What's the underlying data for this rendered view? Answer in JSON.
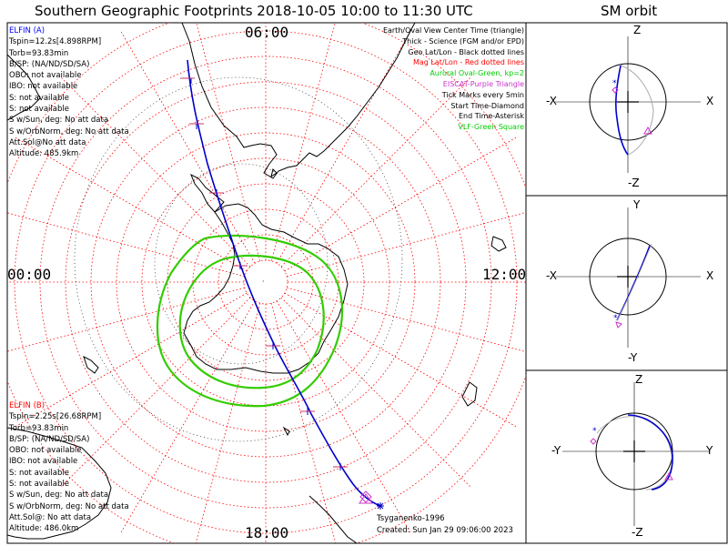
{
  "header": {
    "title": "Southern Geographic Footprints 2018-10-05 10:00 to 11:30 UTC",
    "orbit_title": "SM orbit"
  },
  "map": {
    "mlt_top": "06:00",
    "mlt_left": "00:00",
    "mlt_right": "12:00",
    "mlt_bottom": "18:00"
  },
  "elfin_a": {
    "name": "ELFIN (A)",
    "color": "#0000ff",
    "lines": [
      "Tspin=12.2s[4.898RPM]",
      "Torb=93.83min",
      "B/SP: (NA/ND/SD/SA)",
      "OBO: not available",
      "IBO: not available",
      "S: not available",
      "S: not available",
      "S w/Sun, deg: No att data",
      "S w/OrbNorm, deg: No att data",
      "Att.Sol@No att data",
      "Altitude: 485.9km"
    ]
  },
  "elfin_b": {
    "name": "ELFIN (B)",
    "color": "#ff0000",
    "lines": [
      "Tspin=2.25s[26.68RPM]",
      "Torb=93.83min",
      "B/SP: (NA/ND/SD/SA)",
      "OBO: not available",
      "IBO: not available",
      "S: not available",
      "S: not available",
      "S w/Sun, deg: No att data",
      "S w/OrbNorm, deg: No att data",
      "Att.Sol@: No att data",
      "Altitude: 486.0km"
    ]
  },
  "legend": [
    {
      "text": "Earth/Oval View Center Time (triangle)",
      "color": "#000000"
    },
    {
      "text": "Thick - Science (FGM and/or EPD)",
      "color": "#000000"
    },
    {
      "text": "Geo Lat/Lon - Black dotted lines",
      "color": "#000000"
    },
    {
      "text": "Mag Lat/Lon - Red dotted lines",
      "color": "#ff0000"
    },
    {
      "text": "Auroral Oval-Green, kp=2",
      "color": "#00cc00"
    },
    {
      "text": "EISCAT-Purple Triangle",
      "color": "#cc33cc"
    },
    {
      "text": "Tick Marks every 5min",
      "color": "#000000"
    },
    {
      "text": "Start Time-Diamond",
      "color": "#000000"
    },
    {
      "text": "End Time-Asterisk",
      "color": "#000000"
    },
    {
      "text": "VLF-Green Square",
      "color": "#00cc00"
    }
  ],
  "footer": {
    "model": "Tsyganenko-1996",
    "created": "Created: Sun Jan 29 09:06:00 2023"
  },
  "orbit_panels": [
    {
      "top": "Z",
      "bottom": "-Z",
      "left": "-X",
      "right": "X"
    },
    {
      "top": "Y",
      "bottom": "-Y",
      "left": "-X",
      "right": "X"
    },
    {
      "top": "Z",
      "bottom": "-Z",
      "left": "-Y",
      "right": "Y"
    }
  ],
  "colors": {
    "grid_red": "#ff0000",
    "track_blue": "#0000cc",
    "oval_green": "#33cc00",
    "accent_magenta": "#cc33cc"
  }
}
